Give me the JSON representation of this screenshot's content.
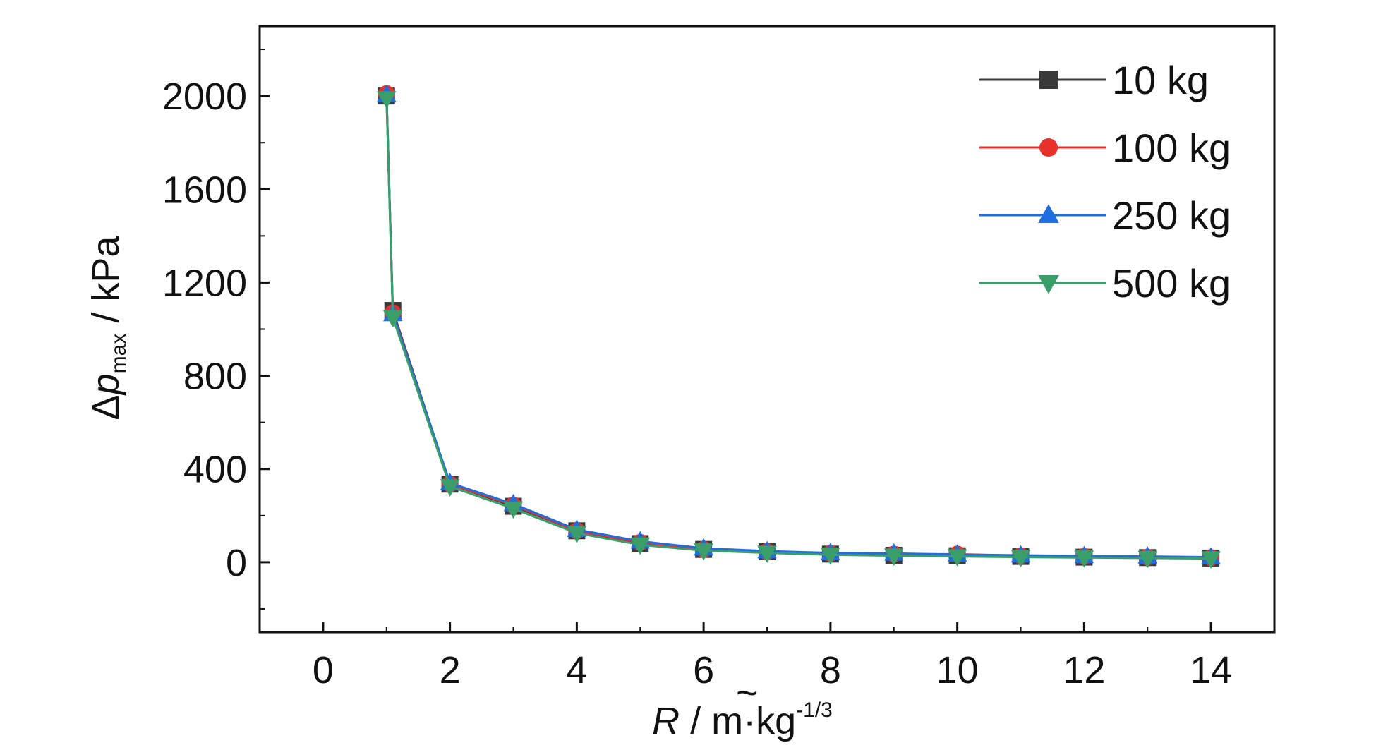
{
  "chart_data": {
    "type": "line",
    "title": "",
    "xlabel": {
      "symbol": "R",
      "accent": "~",
      "unit_main": " / m·kg",
      "unit_sup": "-1/3"
    },
    "ylabel": {
      "prefix": "Δ",
      "symbol": "p",
      "subscript": "max",
      "unit": " / kPa"
    },
    "xlim": [
      -1,
      15
    ],
    "ylim": [
      -300,
      2300
    ],
    "xticks": [
      0,
      2,
      4,
      6,
      8,
      10,
      12,
      14
    ],
    "yticks": [
      0,
      400,
      800,
      1200,
      1600,
      2000
    ],
    "grid": false,
    "legend_position": "top-right",
    "x": [
      1,
      1.1,
      2,
      3,
      4,
      5,
      6,
      7,
      8,
      9,
      10,
      11,
      12,
      13,
      14
    ],
    "series": [
      {
        "name": "10 kg",
        "marker": "square",
        "color": "#3a3a3a",
        "values": [
          2000,
          1080,
          335,
          240,
          135,
          80,
          55,
          45,
          35,
          30,
          28,
          25,
          22,
          20,
          18
        ]
      },
      {
        "name": "100 kg",
        "marker": "circle",
        "color": "#e8312a",
        "values": [
          2010,
          1070,
          335,
          245,
          135,
          85,
          55,
          45,
          38,
          35,
          35,
          28,
          25,
          22,
          20
        ]
      },
      {
        "name": "250 kg",
        "marker": "triangle-up",
        "color": "#1f6ee0",
        "values": [
          2005,
          1065,
          340,
          250,
          140,
          90,
          60,
          48,
          40,
          38,
          33,
          30,
          27,
          25,
          22
        ]
      },
      {
        "name": "500 kg",
        "marker": "triangle-down",
        "color": "#3a9e6a",
        "values": [
          1990,
          1050,
          325,
          230,
          125,
          75,
          50,
          40,
          32,
          28,
          25,
          22,
          20,
          18,
          16
        ]
      }
    ]
  }
}
